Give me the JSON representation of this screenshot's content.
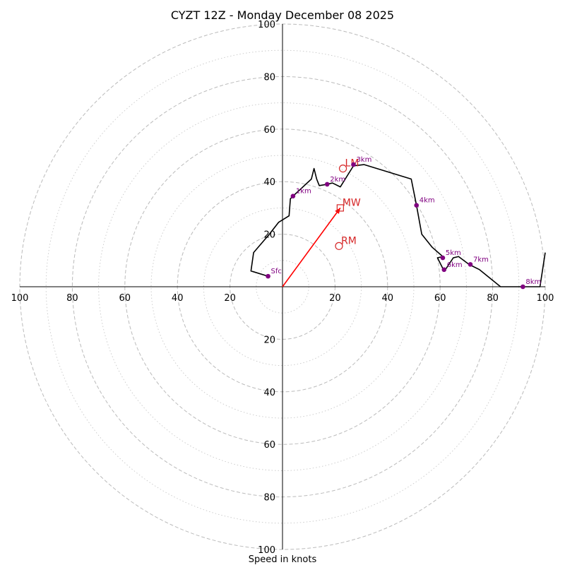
{
  "chart_data": {
    "type": "hodograph",
    "title": "CYZT 12Z - Monday December 08 2025",
    "xlabel": "Speed in knots",
    "range": [
      -100,
      100
    ],
    "rings_major": [
      20,
      40,
      60,
      80,
      100
    ],
    "rings_minor": [
      10,
      30,
      50,
      70,
      90
    ],
    "tick_labels": {
      "x_left": [
        "100",
        "80",
        "60",
        "40",
        "20"
      ],
      "x_right": [
        "20",
        "40",
        "60",
        "80",
        "100"
      ],
      "y_top": [
        "100",
        "80",
        "60",
        "40",
        "20"
      ],
      "y_bottom": [
        "20",
        "40",
        "60",
        "80",
        "100"
      ]
    },
    "line_color": "#000000",
    "point_color": "#800080",
    "motion_color": "#d62728",
    "arrow_color": "#ff0000",
    "trace": [
      [
        -5.5,
        4
      ],
      [
        -12,
        6
      ],
      [
        -11,
        13
      ],
      [
        -5,
        20
      ],
      [
        -1.5,
        24.5
      ],
      [
        2.5,
        27
      ],
      [
        3,
        33.5
      ],
      [
        4,
        34.5
      ],
      [
        11,
        41
      ],
      [
        12,
        45
      ],
      [
        13,
        41
      ],
      [
        14,
        38.5
      ],
      [
        17,
        39
      ],
      [
        19,
        39.5
      ],
      [
        22,
        38
      ],
      [
        27,
        46
      ],
      [
        31,
        46.5
      ],
      [
        49,
        41
      ],
      [
        51,
        31
      ],
      [
        53,
        20
      ],
      [
        57,
        15
      ],
      [
        61,
        11.5
      ],
      [
        59,
        11
      ],
      [
        61,
        7
      ],
      [
        62,
        6.5
      ],
      [
        65,
        11
      ],
      [
        67,
        11.5
      ],
      [
        71,
        8.5
      ],
      [
        75,
        6.5
      ],
      [
        83,
        0
      ],
      [
        92,
        0
      ],
      [
        98,
        0
      ],
      [
        100,
        13
      ]
    ],
    "height_points": [
      {
        "label": "Sfc",
        "u": -5.5,
        "v": 4
      },
      {
        "label": "1km",
        "u": 4,
        "v": 34.5
      },
      {
        "label": "2km",
        "u": 17,
        "v": 39
      },
      {
        "label": "3km",
        "u": 27,
        "v": 46.5
      },
      {
        "label": "4km",
        "u": 51,
        "v": 31
      },
      {
        "label": "5km",
        "u": 61,
        "v": 11
      },
      {
        "label": "6km",
        "u": 61.5,
        "v": 6.5
      },
      {
        "label": "7km",
        "u": 71.5,
        "v": 8.5
      },
      {
        "label": "8km",
        "u": 91.5,
        "v": 0
      }
    ],
    "storm_motions": [
      {
        "label": "LM",
        "u": 23,
        "v": 45,
        "marker": "circle"
      },
      {
        "label": "MW",
        "u": 22,
        "v": 30,
        "marker": "square"
      },
      {
        "label": "RM",
        "u": 21.5,
        "v": 15.5,
        "marker": "circle"
      }
    ],
    "mean_wind_arrow": {
      "u": 22,
      "v": 30
    }
  }
}
